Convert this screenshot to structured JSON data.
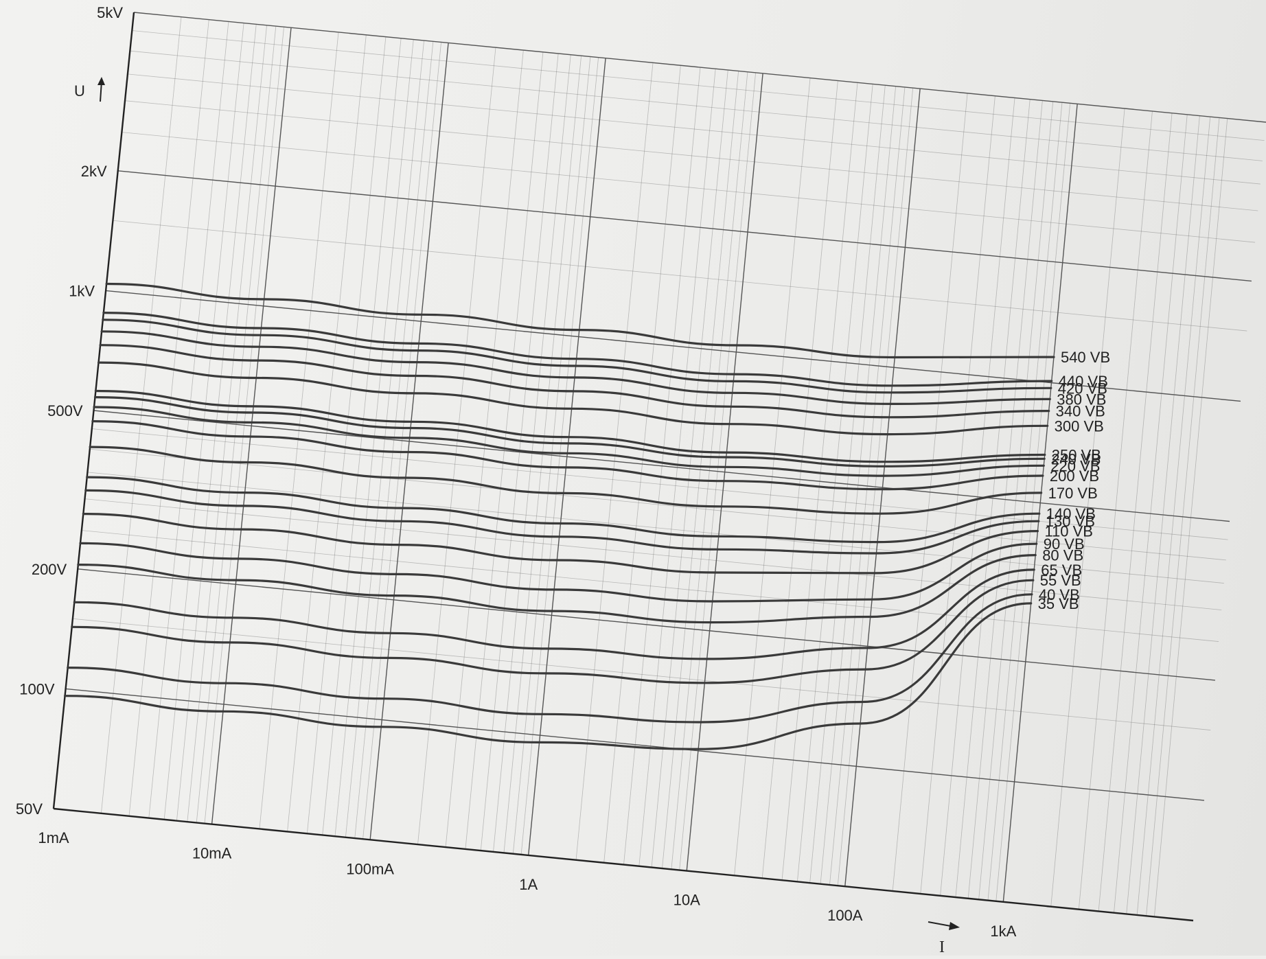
{
  "chart_data": {
    "type": "line",
    "title": "",
    "xlabel": "I",
    "ylabel": "U",
    "x_scale": "log",
    "y_scale": "log",
    "xlim": [
      "1mA",
      "1kA"
    ],
    "ylim": [
      "50V",
      "5kV"
    ],
    "xlim_A": [
      0.001,
      1000
    ],
    "ylim_V": [
      50,
      5000
    ],
    "x_ticks": [
      {
        "label": "1mA",
        "value": 0.001
      },
      {
        "label": "10mA",
        "value": 0.01
      },
      {
        "label": "100mA",
        "value": 0.1
      },
      {
        "label": "1A",
        "value": 1
      },
      {
        "label": "10A",
        "value": 10
      },
      {
        "label": "100A",
        "value": 100
      },
      {
        "label": "1kA",
        "value": 1000
      }
    ],
    "y_ticks": [
      {
        "label": "50V",
        "value": 50
      },
      {
        "label": "100V",
        "value": 100
      },
      {
        "label": "200V",
        "value": 200
      },
      {
        "label": "500V",
        "value": 500
      },
      {
        "label": "1kV",
        "value": 1000
      },
      {
        "label": "2kV",
        "value": 2000
      },
      {
        "label": "5kV",
        "value": 5000
      }
    ],
    "grid": true,
    "legend": "labels at right end of curves",
    "line_color": "#3a3a3a",
    "grid_color": "#555555",
    "series": [
      {
        "name": "540 VB",
        "x": [
          0.001,
          0.01,
          0.1,
          1,
          10,
          100,
          1000
        ],
        "y": [
          1040,
          1040,
          1040,
          1040,
          1040,
          1060,
          1160
        ]
      },
      {
        "name": "440 VB",
        "x": [
          0.001,
          0.01,
          0.1,
          1,
          10,
          100,
          1000
        ],
        "y": [
          880,
          880,
          880,
          880,
          880,
          900,
          1010
        ]
      },
      {
        "name": "420 VB",
        "x": [
          0.001,
          0.01,
          0.1,
          1,
          10,
          100,
          1000
        ],
        "y": [
          845,
          845,
          845,
          845,
          845,
          865,
          970
        ]
      },
      {
        "name": "380 VB",
        "x": [
          0.001,
          0.01,
          0.1,
          1,
          10,
          100,
          1000
        ],
        "y": [
          790,
          790,
          790,
          790,
          790,
          810,
          910
        ]
      },
      {
        "name": "340 VB",
        "x": [
          0.001,
          0.01,
          0.1,
          1,
          10,
          100,
          1000
        ],
        "y": [
          730,
          730,
          730,
          730,
          730,
          750,
          850
        ]
      },
      {
        "name": "300 VB",
        "x": [
          0.001,
          0.01,
          0.1,
          1,
          10,
          100,
          1000
        ],
        "y": [
          660,
          660,
          660,
          660,
          660,
          680,
          780
        ]
      },
      {
        "name": "250 VB",
        "x": [
          0.001,
          0.01,
          0.1,
          1,
          10,
          100,
          1000
        ],
        "y": [
          560,
          560,
          560,
          560,
          560,
          580,
          660
        ]
      },
      {
        "name": "240 VB",
        "x": [
          0.001,
          0.01,
          0.1,
          1,
          10,
          100,
          1000
        ],
        "y": [
          540,
          540,
          540,
          540,
          545,
          565,
          645
        ]
      },
      {
        "name": "220 VB",
        "x": [
          0.001,
          0.01,
          0.1,
          1,
          10,
          100,
          1000
        ],
        "y": [
          510,
          510,
          510,
          510,
          515,
          535,
          620
        ]
      },
      {
        "name": "200 VB",
        "x": [
          0.001,
          0.01,
          0.1,
          1,
          10,
          100,
          1000
        ],
        "y": [
          470,
          470,
          470,
          470,
          475,
          495,
          585
        ]
      },
      {
        "name": "170 VB",
        "x": [
          0.001,
          0.01,
          0.1,
          1,
          10,
          100,
          1000
        ],
        "y": [
          405,
          405,
          405,
          405,
          410,
          430,
          530
        ]
      },
      {
        "name": "140 VB",
        "x": [
          0.001,
          0.01,
          0.1,
          1,
          10,
          100,
          1000
        ],
        "y": [
          340,
          340,
          340,
          340,
          345,
          365,
          470
        ]
      },
      {
        "name": "130 VB",
        "x": [
          0.001,
          0.01,
          0.1,
          1,
          10,
          100,
          1000
        ],
        "y": [
          315,
          315,
          315,
          315,
          320,
          342,
          450
        ]
      },
      {
        "name": "110 VB",
        "x": [
          0.001,
          0.01,
          0.1,
          1,
          10,
          100,
          1000
        ],
        "y": [
          275,
          275,
          275,
          275,
          280,
          305,
          425
        ]
      },
      {
        "name": "90 VB",
        "x": [
          0.001,
          0.01,
          0.1,
          1,
          10,
          100,
          1000
        ],
        "y": [
          232,
          232,
          232,
          232,
          237,
          262,
          395
        ]
      },
      {
        "name": "80 VB",
        "x": [
          0.001,
          0.01,
          0.1,
          1,
          10,
          100,
          1000
        ],
        "y": [
          205,
          205,
          205,
          205,
          210,
          237,
          370
        ]
      },
      {
        "name": "65 VB",
        "x": [
          0.001,
          0.01,
          0.1,
          1,
          10,
          100,
          1000
        ],
        "y": [
          165,
          165,
          165,
          165,
          170,
          198,
          340
        ]
      },
      {
        "name": "55 VB",
        "x": [
          0.001,
          0.01,
          0.1,
          1,
          10,
          100,
          1000
        ],
        "y": [
          143,
          143,
          143,
          143,
          148,
          175,
          320
        ]
      },
      {
        "name": "40 VB",
        "x": [
          0.001,
          0.01,
          0.1,
          1,
          10,
          100,
          1000
        ],
        "y": [
          113,
          113,
          113,
          113,
          118,
          145,
          295
        ]
      },
      {
        "name": "35 VB",
        "x": [
          0.001,
          0.01,
          0.1,
          1,
          10,
          100,
          1000
        ],
        "y": [
          96,
          96,
          96,
          96,
          101,
          128,
          280
        ]
      }
    ]
  }
}
